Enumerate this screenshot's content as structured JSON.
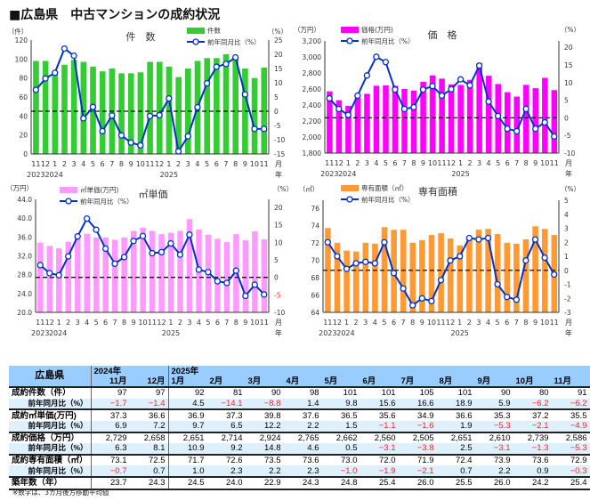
{
  "title": "■広島県　中古マンションの成約状況",
  "months": [
    "11",
    "12",
    "1",
    "2",
    "3",
    "4",
    "5",
    "6",
    "7",
    "8",
    "9",
    "10",
    "11",
    "12",
    "1",
    "2",
    "3",
    "4",
    "5",
    "6",
    "7",
    "8",
    "9",
    "10",
    "11"
  ],
  "years": [
    "2023",
    "2024",
    "2025"
  ],
  "axis_suffix": {
    "month": "月",
    "year": "年"
  },
  "chart_data": [
    {
      "type": "bar",
      "title": "件　数",
      "left_unit": "（件）",
      "right_unit": "（%）",
      "bar_legend": "件数",
      "line_legend": "前年同月比（%）",
      "bar_color": "#33cc33",
      "line_color": "#0033cc",
      "ylim": [
        0,
        120
      ],
      "left_ticks": [
        "0",
        "20",
        "40",
        "60",
        "80",
        "100",
        "120"
      ],
      "y2lim": [
        -15,
        25
      ],
      "right_ticks": [
        "-15",
        "-10",
        "-5",
        "0",
        "5",
        "10",
        "15",
        "20",
        "25"
      ],
      "values": [
        98,
        98,
        87,
        94,
        99,
        97,
        92,
        87,
        90,
        85,
        85,
        86,
        97,
        97,
        92,
        81,
        90,
        98,
        101,
        101,
        105,
        101,
        90,
        80,
        91
      ],
      "yoy": [
        7.5,
        11.5,
        13.5,
        22,
        19.5,
        -2.5,
        1.5,
        -7,
        -1.5,
        -8.5,
        -11,
        -12,
        -1.7,
        -1.4,
        4.5,
        -14.1,
        -8.8,
        1.4,
        9.8,
        15.6,
        16.6,
        18.9,
        5.9,
        -6.2,
        -6.2
      ]
    },
    {
      "type": "bar",
      "title": "価　格",
      "left_unit": "（万円）",
      "right_unit": "（%）",
      "bar_legend": "価格(万円)",
      "line_legend": "前年同月比（%）",
      "bar_color": "#ff00ff",
      "line_color": "#0033cc",
      "ylim": [
        1800,
        3200
      ],
      "left_ticks": [
        "1,800",
        "2,000",
        "2,200",
        "2,400",
        "2,600",
        "2,800",
        "3,000",
        "3,200"
      ],
      "y2lim": [
        -10,
        21.8
      ],
      "right_ticks": [
        "-10",
        "-5",
        "0",
        "5",
        "10",
        "15",
        "20"
      ],
      "values": [
        2570,
        2460,
        2390,
        2490,
        2540,
        2640,
        2645,
        2640,
        2600,
        2580,
        2690,
        2770,
        2729,
        2658,
        2651,
        2714,
        2924,
        2765,
        2662,
        2560,
        2505,
        2651,
        2610,
        2739,
        2586
      ],
      "yoy": [
        5.5,
        2.5,
        0.8,
        6.3,
        12,
        17.3,
        15.8,
        8,
        2.5,
        3,
        8,
        9,
        6.3,
        8.1,
        10.9,
        9.2,
        14.8,
        4.6,
        0.5,
        -3.1,
        -3.8,
        2.5,
        -3.1,
        -1.3,
        -5.3
      ]
    },
    {
      "type": "bar",
      "title": "㎡単価",
      "left_unit": "（万円）",
      "right_unit": "（%）",
      "bar_legend": "㎡単価(万円)",
      "line_legend": "前年同月比（%）",
      "bar_color": "#ff99ff",
      "line_color": "#0033cc",
      "ylim": [
        20,
        44
      ],
      "left_ticks": [
        "20.0",
        "24.0",
        "28.0",
        "32.0",
        "36.0",
        "40.0",
        "44.0"
      ],
      "y2lim": [
        -10,
        22.3
      ],
      "right_ticks": [
        "-10",
        "-5",
        "0",
        "5",
        "10",
        "15",
        "20"
      ],
      "values": [
        34.8,
        34.1,
        33.6,
        35.0,
        35.8,
        36.7,
        35.9,
        35.9,
        35.4,
        35.9,
        37.3,
        38.0,
        37.3,
        36.6,
        36.9,
        37.3,
        39.8,
        37.6,
        36.5,
        35.6,
        34.9,
        36.6,
        35.3,
        37.2,
        35.5
      ],
      "yoy": [
        3.5,
        1.2,
        0.6,
        6,
        11.7,
        16.8,
        13.6,
        8.2,
        3.9,
        5.8,
        10.4,
        11.8,
        6.9,
        7.2,
        9.7,
        6.5,
        12.2,
        2.2,
        1.5,
        -1.1,
        -1.6,
        1.9,
        -5.3,
        -2.1,
        -4.9
      ]
    },
    {
      "type": "bar",
      "title": "専有面積",
      "left_unit": "（㎡）",
      "right_unit": "（%）",
      "bar_legend": "専有面積（㎡）",
      "line_legend": "前年同月比（%）",
      "bar_color": "#ff9933",
      "line_color": "#0033cc",
      "ylim": [
        64,
        76.9
      ],
      "left_ticks": [
        "64",
        "66",
        "68",
        "70",
        "72",
        "74",
        "76"
      ],
      "y2lim": [
        -3,
        5
      ],
      "right_ticks": [
        "-3",
        "-2",
        "-1",
        "0",
        "1",
        "2",
        "3",
        "4",
        "5"
      ],
      "values": [
        73.7,
        72.0,
        71.1,
        71.0,
        72.0,
        71.9,
        73.8,
        73.5,
        73.5,
        72.0,
        72.3,
        72.9,
        73.1,
        72.5,
        71.7,
        72.6,
        73.5,
        73.6,
        73.0,
        72.0,
        71.9,
        72.4,
        73.9,
        73.6,
        72.9
      ],
      "yoy": [
        2.0,
        1.0,
        0.1,
        0.5,
        0.6,
        0.5,
        2.0,
        -0.2,
        -1.3,
        -2.5,
        -2.0,
        -2.2,
        -0.7,
        0.7,
        1.0,
        2.3,
        2.2,
        2.3,
        -1.0,
        -1.9,
        -2.1,
        0.7,
        2.2,
        0.9,
        -0.3
      ]
    }
  ],
  "table": {
    "corner": "広島県",
    "year_headers": [
      "2024年",
      "2025年"
    ],
    "month_headers": [
      "11月",
      "12月",
      "1月",
      "2月",
      "3月",
      "4月",
      "5月",
      "6月",
      "7月",
      "8月",
      "9月",
      "10月",
      "11月"
    ],
    "rows": [
      {
        "label": "成約件数（件）",
        "sub": false,
        "values": [
          "97",
          "97",
          "92",
          "81",
          "90",
          "98",
          "101",
          "101",
          "105",
          "101",
          "90",
          "80",
          "91"
        ]
      },
      {
        "label": "前年同月比（%）",
        "sub": true,
        "values": [
          "−1.7",
          "−1.4",
          "4.5",
          "−14.1",
          "−8.8",
          "1.4",
          "9.8",
          "15.6",
          "16.6",
          "18.9",
          "5.9",
          "−6.2",
          "−6.2"
        ]
      },
      {
        "label": "成約㎡単価(万円)",
        "sub": false,
        "values": [
          "37.3",
          "36.6",
          "36.9",
          "37.3",
          "39.8",
          "37.6",
          "36.5",
          "35.6",
          "34.9",
          "36.6",
          "35.3",
          "37.2",
          "35.5"
        ]
      },
      {
        "label": "前年同月比（%）",
        "sub": true,
        "values": [
          "6.9",
          "7.2",
          "9.7",
          "6.5",
          "12.2",
          "2.2",
          "1.5",
          "−1.1",
          "−1.6",
          "1.9",
          "−5.3",
          "−2.1",
          "−4.9"
        ]
      },
      {
        "label": "成約価格（万円）",
        "sub": false,
        "values": [
          "2,729",
          "2,658",
          "2,651",
          "2,714",
          "2,924",
          "2,765",
          "2,662",
          "2,560",
          "2,505",
          "2,651",
          "2,610",
          "2,739",
          "2,586"
        ]
      },
      {
        "label": "前年同月比（%）",
        "sub": true,
        "values": [
          "6.3",
          "8.1",
          "10.9",
          "9.2",
          "14.8",
          "4.6",
          "0.5",
          "−3.1",
          "−3.8",
          "2.5",
          "−3.1",
          "−1.3",
          "−5.3"
        ]
      },
      {
        "label": "成約専有面積（㎡）",
        "sub": false,
        "values": [
          "73.1",
          "72.5",
          "71.7",
          "72.6",
          "73.5",
          "73.6",
          "73.0",
          "72.0",
          "71.9",
          "72.4",
          "73.9",
          "73.6",
          "72.9"
        ]
      },
      {
        "label": "前年同月比（%）",
        "sub": true,
        "values": [
          "−0.7",
          "0.7",
          "1.0",
          "2.3",
          "2.2",
          "2.3",
          "−1.0",
          "−1.9",
          "−2.1",
          "0.7",
          "2.2",
          "0.9",
          "−0.3"
        ]
      },
      {
        "label": "築年数（年）",
        "sub": false,
        "values": [
          "23.7",
          "24.3",
          "24.5",
          "24.0",
          "22.9",
          "24.3",
          "24.8",
          "25.4",
          "26.0",
          "25.5",
          "26.0",
          "24.2",
          "25.4"
        ]
      }
    ],
    "note": "※数字は、3カ月後方移動平均値"
  }
}
